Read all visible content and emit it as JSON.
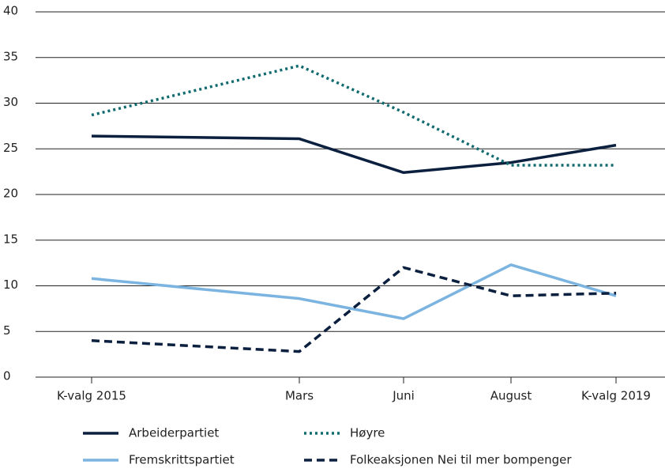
{
  "chart_data": {
    "type": "line",
    "categories": [
      "K-valg 2015",
      "Mars",
      "Juni",
      "August",
      "K-valg 2019"
    ],
    "series": [
      {
        "name": "Arbeiderpartiet",
        "color": "#0b1f3f",
        "dash": "solid",
        "values": [
          26.4,
          26.1,
          22.4,
          23.5,
          25.4
        ]
      },
      {
        "name": "Høyre",
        "color": "#116b6e",
        "dash": "dotted",
        "values": [
          28.7,
          34.1,
          29.0,
          23.2,
          23.2
        ]
      },
      {
        "name": "Fremskrittspartiet",
        "color": "#7bb4e0",
        "dash": "solid",
        "values": [
          10.8,
          8.6,
          6.4,
          12.3,
          8.9
        ]
      },
      {
        "name": "Folkeaksjonen Nei til mer bompenger",
        "color": "#0b1f3f",
        "dash": "dashed",
        "values": [
          4.0,
          2.8,
          12.0,
          8.9,
          9.2
        ]
      }
    ],
    "ylim": [
      0,
      40
    ],
    "yticks": [
      0,
      5,
      10,
      15,
      20,
      25,
      30,
      35,
      40
    ],
    "grid": true
  }
}
